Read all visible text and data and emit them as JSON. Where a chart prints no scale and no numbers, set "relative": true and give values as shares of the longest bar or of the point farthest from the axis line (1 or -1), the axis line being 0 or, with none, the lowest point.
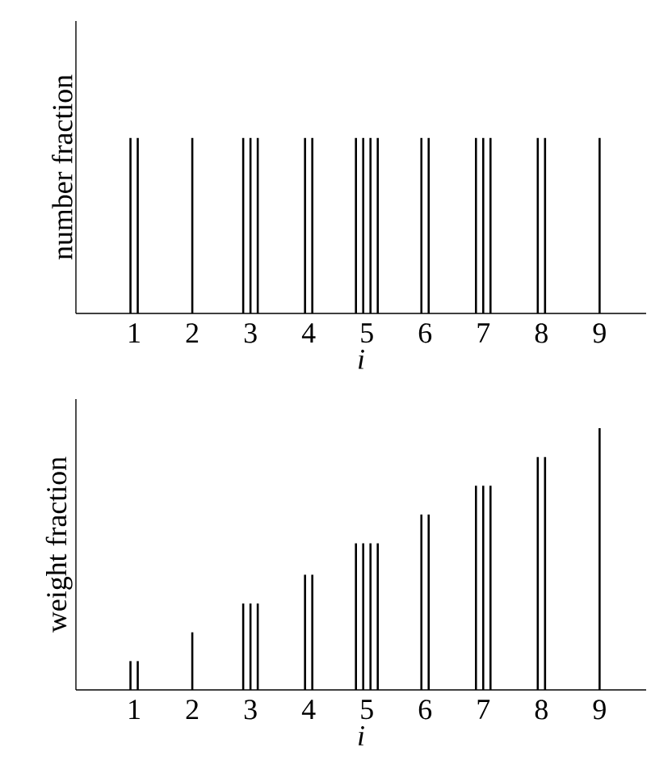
{
  "chart_data": [
    {
      "type": "bar",
      "relative": true,
      "xlabel": "i",
      "ylabel": "number fraction",
      "categories": [
        "1",
        "2",
        "3",
        "4",
        "5",
        "6",
        "7",
        "8",
        "9"
      ],
      "series": [
        {
          "color": "#000000",
          "values": [
            1,
            1,
            1,
            1,
            1,
            1,
            1,
            1,
            1
          ]
        },
        {
          "color": "#000000",
          "values": [
            1,
            null,
            1,
            1,
            1,
            1,
            1,
            1,
            null
          ]
        },
        {
          "color": "#000000",
          "values": [
            null,
            null,
            1,
            null,
            1,
            null,
            1,
            null,
            null
          ]
        },
        {
          "color": "#000000",
          "values": [
            null,
            null,
            null,
            null,
            1,
            null,
            null,
            null,
            null
          ]
        }
      ]
    },
    {
      "type": "bar",
      "relative": true,
      "xlabel": "i",
      "ylabel": "weight fraction",
      "categories": [
        "1",
        "2",
        "3",
        "4",
        "5",
        "6",
        "7",
        "8",
        "9"
      ],
      "series": [
        {
          "color": "#000000",
          "values": [
            0.11,
            0.22,
            0.33,
            0.44,
            0.56,
            0.67,
            0.78,
            0.89,
            1
          ]
        },
        {
          "color": "#000000",
          "values": [
            0.11,
            null,
            0.33,
            0.44,
            0.56,
            0.67,
            0.78,
            0.89,
            null
          ]
        },
        {
          "color": "#000000",
          "values": [
            null,
            null,
            0.33,
            null,
            0.56,
            null,
            0.78,
            null,
            null
          ]
        },
        {
          "color": "#000000",
          "values": [
            null,
            null,
            null,
            null,
            0.56,
            null,
            null,
            null,
            null
          ]
        }
      ]
    }
  ]
}
